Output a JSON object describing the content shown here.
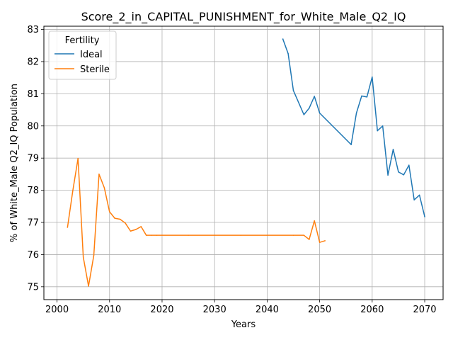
{
  "chart_data": {
    "type": "line",
    "title": "Score_2_in_CAPITAL_PUNISHMENT_for_White_Male_Q2_IQ",
    "xlabel": "Years",
    "ylabel": "% of White_Male Q2_IQ Population",
    "xlim": [
      1997.5,
      2073.5
    ],
    "ylim": [
      74.6,
      83.1
    ],
    "xticks": [
      2000,
      2010,
      2020,
      2030,
      2040,
      2050,
      2060,
      2070
    ],
    "yticks": [
      75,
      76,
      77,
      78,
      79,
      80,
      81,
      82,
      83
    ],
    "grid": true,
    "legend": {
      "title": "Fertility",
      "position": "top-left"
    },
    "series": [
      {
        "name": "Ideal",
        "color": "#1f77b4",
        "x": [
          2043,
          2044,
          2045,
          2047,
          2048,
          2049,
          2050,
          2056,
          2057,
          2058,
          2059,
          2060,
          2061,
          2062,
          2063,
          2064,
          2065,
          2066,
          2067,
          2068,
          2069,
          2070
        ],
        "y": [
          82.7,
          82.25,
          81.1,
          80.35,
          80.55,
          80.92,
          80.4,
          79.42,
          80.4,
          80.93,
          80.9,
          81.52,
          79.85,
          80.0,
          78.47,
          79.27,
          78.57,
          78.48,
          78.78,
          77.7,
          77.85,
          77.18
        ]
      },
      {
        "name": "Sterile",
        "color": "#ff7f0e",
        "x": [
          2002,
          2003,
          2004,
          2005,
          2006,
          2007,
          2008,
          2009,
          2010,
          2011,
          2012,
          2013,
          2014,
          2015,
          2016,
          2017,
          2018,
          2019,
          2020,
          2025,
          2030,
          2035,
          2040,
          2045,
          2047,
          2048,
          2049,
          2050,
          2051
        ],
        "y": [
          76.85,
          77.98,
          78.99,
          75.92,
          75.02,
          75.97,
          78.5,
          78.08,
          77.33,
          77.13,
          77.1,
          76.98,
          76.73,
          76.78,
          76.87,
          76.6,
          76.6,
          76.6,
          76.6,
          76.6,
          76.6,
          76.6,
          76.6,
          76.6,
          76.6,
          76.47,
          77.05,
          76.38,
          76.43
        ]
      }
    ]
  }
}
